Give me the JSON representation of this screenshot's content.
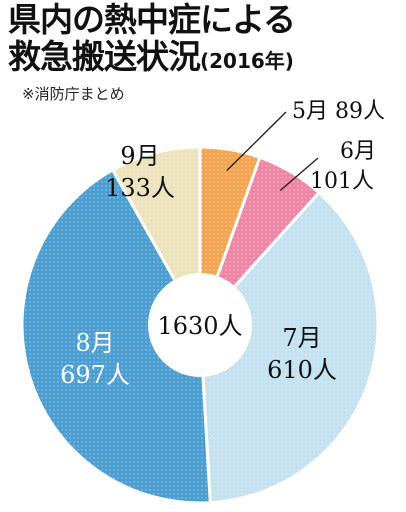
{
  "title": {
    "line1": "県内の熱中症による",
    "line2": "救急搬送状況",
    "year": "(2016年)"
  },
  "source": "※消防庁まとめ",
  "colors": {
    "may": "#f4a552",
    "june": "#ee85a4",
    "july": "#c4e1f0",
    "august": "#4d9ed0",
    "september": "#ece3bd"
  },
  "chart_data": {
    "type": "pie",
    "style": "donut",
    "title": "県内の熱中症による救急搬送状況(2016年)",
    "unit": "人",
    "total_label": "1630人",
    "categories": [
      "5月",
      "6月",
      "7月",
      "8月",
      "9月"
    ],
    "values": [
      89,
      101,
      610,
      697,
      133
    ],
    "value_labels": [
      "89人",
      "101人",
      "610人",
      "697人",
      "133人"
    ],
    "total": 1630
  }
}
